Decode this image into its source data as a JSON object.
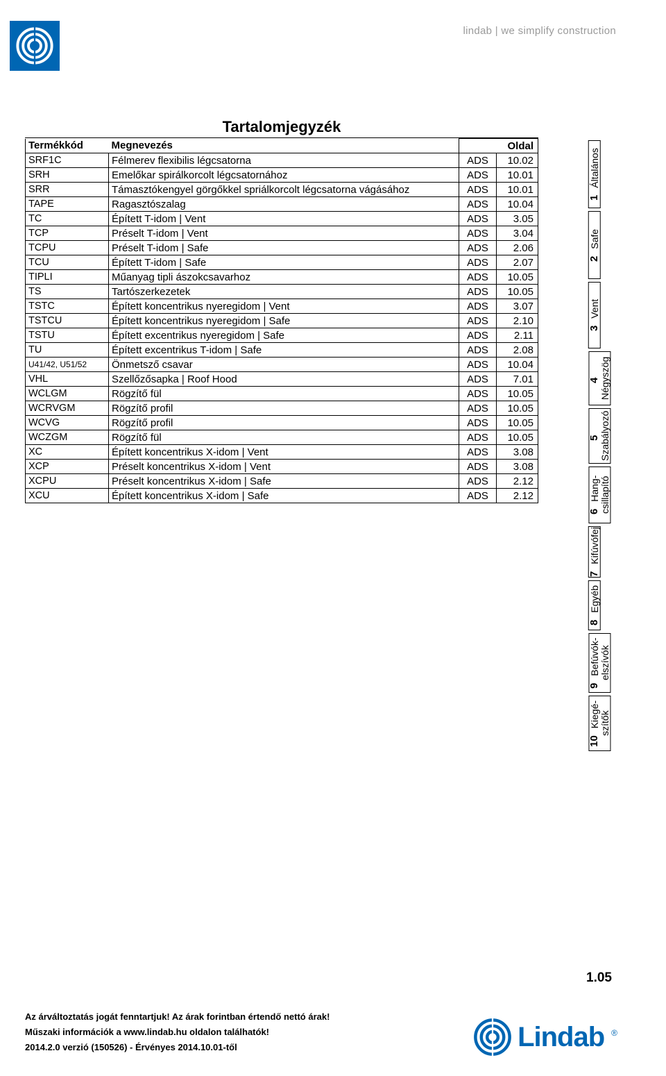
{
  "header": {
    "tagline": "lindab | we simplify construction"
  },
  "title": "Tartalomjegyzék",
  "columns": {
    "code": "Termékkód",
    "desc": "Megnevezés",
    "page": "Oldal"
  },
  "rows": [
    {
      "code": "SRF1C",
      "desc": "Félmerev flexibilis légcsatorna",
      "src": "ADS",
      "page": "10.02"
    },
    {
      "code": "SRH",
      "desc": "Emelőkar spirálkorcolt légcsatornához",
      "src": "ADS",
      "page": "10.01"
    },
    {
      "code": "SRR",
      "desc": "Támasztókengyel görgőkkel spriálkorcolt légcsatorna vágásához",
      "src": "ADS",
      "page": "10.01"
    },
    {
      "code": "TAPE",
      "desc": "Ragasztószalag",
      "src": "ADS",
      "page": "10.04"
    },
    {
      "code": "TC",
      "desc": "Épített T-idom | Vent",
      "src": "ADS",
      "page": "3.05"
    },
    {
      "code": "TCP",
      "desc": "Préselt T-idom | Vent",
      "src": "ADS",
      "page": "3.04"
    },
    {
      "code": "TCPU",
      "desc": "Préselt T-idom | Safe",
      "src": "ADS",
      "page": "2.06"
    },
    {
      "code": "TCU",
      "desc": "Épített T-idom | Safe",
      "src": "ADS",
      "page": "2.07"
    },
    {
      "code": "TIPLI",
      "desc": "Műanyag tipli ászokcsavarhoz",
      "src": "ADS",
      "page": "10.05"
    },
    {
      "code": "TS",
      "desc": "Tartószerkezetek",
      "src": "ADS",
      "page": "10.05"
    },
    {
      "code": "TSTC",
      "desc": "Épített koncentrikus nyeregidom | Vent",
      "src": "ADS",
      "page": "3.07"
    },
    {
      "code": "TSTCU",
      "desc": "Épített koncentrikus nyeregidom | Safe",
      "src": "ADS",
      "page": "2.10"
    },
    {
      "code": "TSTU",
      "desc": "Épített excentrikus nyeregidom | Safe",
      "src": "ADS",
      "page": "2.11"
    },
    {
      "code": "TU",
      "desc": "Épített excentrikus T-idom | Safe",
      "src": "ADS",
      "page": "2.08"
    },
    {
      "code": "U41/42, U51/52",
      "small": true,
      "desc": "Önmetsző csavar",
      "src": "ADS",
      "page": "10.04"
    },
    {
      "code": "VHL",
      "desc": "Szellőzősapka | Roof Hood",
      "src": "ADS",
      "page": "7.01"
    },
    {
      "code": "WCLGM",
      "desc": "Rögzítő fül",
      "src": "ADS",
      "page": "10.05"
    },
    {
      "code": "WCRVGM",
      "desc": "Rögzítő profil",
      "src": "ADS",
      "page": "10.05"
    },
    {
      "code": "WCVG",
      "desc": "Rögzítő profil",
      "src": "ADS",
      "page": "10.05"
    },
    {
      "code": "WCZGM",
      "desc": "Rögzítő fül",
      "src": "ADS",
      "page": "10.05"
    },
    {
      "code": "XC",
      "desc": "Épített koncentrikus X-idom | Vent",
      "src": "ADS",
      "page": "3.08"
    },
    {
      "code": "XCP",
      "desc": "Préselt koncentrikus X-idom | Vent",
      "src": "ADS",
      "page": "3.08"
    },
    {
      "code": "XCPU",
      "desc": "Préselt koncentrikus X-idom | Safe",
      "src": "ADS",
      "page": "2.12"
    },
    {
      "code": "XCU",
      "desc": "Épített koncentrikus X-idom | Safe",
      "src": "ADS",
      "page": "2.12"
    }
  ],
  "tabs": [
    {
      "num": "1",
      "label": "Általános"
    },
    {
      "num": "2",
      "label": "Safe"
    },
    {
      "num": "3",
      "label": "Vent"
    },
    {
      "num": "4",
      "label": "Négyszög"
    },
    {
      "num": "5",
      "label": "Szabályozó"
    },
    {
      "num": "6",
      "label": "Hang-\ncsillapító"
    },
    {
      "num": "7",
      "label": "Kifúvófej"
    },
    {
      "num": "8",
      "label": "Egyéb"
    },
    {
      "num": "9",
      "label": "Befúvók-\nelszívók"
    },
    {
      "num": "10",
      "label": "Kiegé-\nszítők"
    }
  ],
  "footer": {
    "line1": "Az árváltoztatás jogát fenntartjuk! Az árak forintban értendő nettó árak!",
    "line2": "Műszaki információk a www.lindab.hu oldalon találhatók!",
    "line3": "2014.2.0 verzió (150526) - Érvényes 2014.10.01-től",
    "brand": "Lindab"
  },
  "page_number": "1.05",
  "colors": {
    "brand_blue": "#0066b3",
    "tagline_gray": "#9a9a9a",
    "border": "#000000",
    "background": "#ffffff"
  },
  "typography": {
    "title_fontsize": 22,
    "body_fontsize": 15,
    "footer_fontsize": 13,
    "page_number_fontsize": 19
  }
}
